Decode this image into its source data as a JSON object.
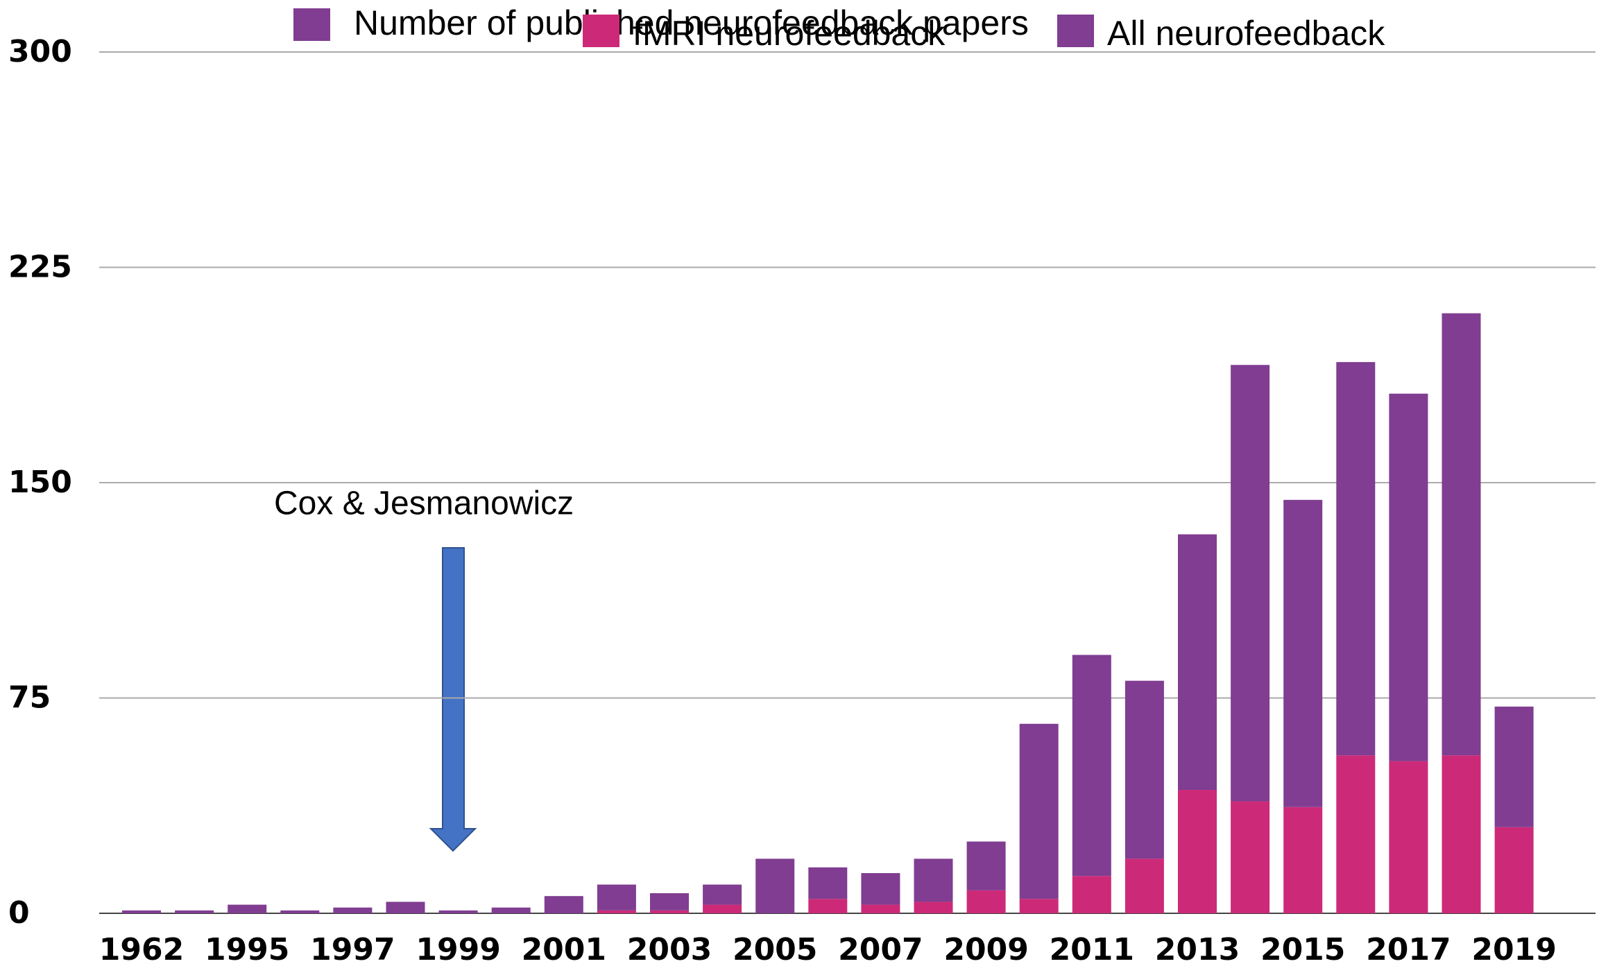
{
  "chart_data": {
    "type": "stacked_bar",
    "legend_title": "Number of published neurofeedback papers",
    "legend_title_color": "#803d91",
    "annotation": "Cox & Jesmanowicz",
    "categories": [
      "1962",
      null,
      "1995",
      null,
      "1997",
      null,
      "1999",
      null,
      "2001",
      null,
      "2003",
      null,
      "2005",
      null,
      "2007",
      null,
      "2009",
      null,
      "2011",
      null,
      "2013",
      null,
      "2015",
      null,
      "2017",
      null,
      "2019"
    ],
    "series": [
      {
        "name": "fMRI neurofeedback",
        "color": "#cc2a78",
        "values": [
          0,
          0,
          0,
          0,
          0,
          0,
          0,
          0,
          0,
          1,
          1,
          3,
          0,
          5,
          3,
          4,
          8,
          5,
          13,
          19,
          43,
          39,
          37,
          55,
          53,
          55,
          30
        ]
      },
      {
        "name": "All neurofeedback",
        "color": "#803d91",
        "values": [
          1,
          1,
          3,
          1,
          2,
          4,
          1,
          2,
          6,
          9,
          6,
          7,
          19,
          11,
          11,
          15,
          17,
          61,
          77,
          62,
          89,
          152,
          107,
          137,
          128,
          154,
          42
        ]
      }
    ],
    "ylim": [
      0,
      300
    ],
    "yticks": [
      0,
      75,
      150,
      225,
      300
    ],
    "grid": true
  }
}
